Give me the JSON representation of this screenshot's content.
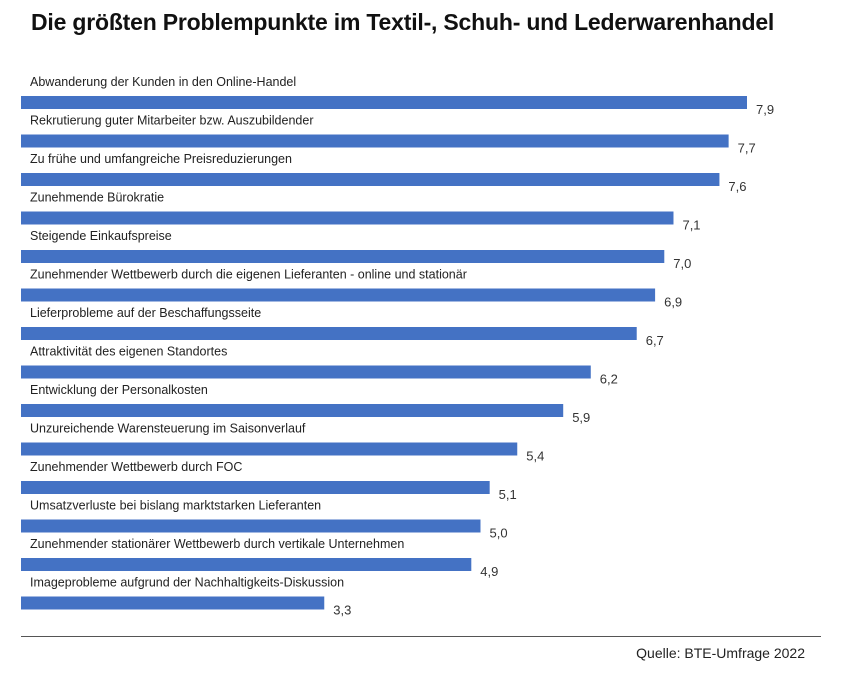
{
  "chart_data": {
    "type": "bar",
    "orientation": "horizontal",
    "title": "Die größten Problempunkte im Textil-, Schuh- und Lederwarenhandel",
    "categories": [
      "Abwanderung der Kunden in den Online-Handel",
      "Rekrutierung guter Mitarbeiter bzw. Auszubildender",
      "Zu frühe und umfangreiche Preisreduzierungen",
      "Zunehmende Bürokratie",
      "Steigende Einkaufspreise",
      "Zunehmender Wettbewerb durch die eigenen Lieferanten - online und stationär",
      "Lieferprobleme auf der Beschaffungsseite",
      "Attraktivität des eigenen Standortes",
      "Entwicklung der Personalkosten",
      "Unzureichende Warensteuerung im Saisonverlauf",
      "Zunehmender Wettbewerb durch FOC",
      "Umsatzverluste bei bislang marktstarken Lieferanten",
      "Zunehmender stationärer Wettbewerb durch vertikale Unternehmen",
      "Imageprobleme aufgrund der Nachhaltigkeits-Diskussion"
    ],
    "values": [
      7.9,
      7.7,
      7.6,
      7.1,
      7.0,
      6.9,
      6.7,
      6.2,
      5.9,
      5.4,
      5.1,
      5.0,
      4.9,
      3.3
    ],
    "value_labels": [
      "7,9",
      "7,7",
      "7,6",
      "7,1",
      "7,0",
      "6,9",
      "6,7",
      "6,2",
      "5,9",
      "5,4",
      "5,1",
      "5,0",
      "4,9",
      "3,3"
    ],
    "xlim": [
      0,
      7.9
    ],
    "grid": false,
    "bar_color": "#4472c4"
  },
  "source": "Quelle: BTE-Umfrage 2022"
}
